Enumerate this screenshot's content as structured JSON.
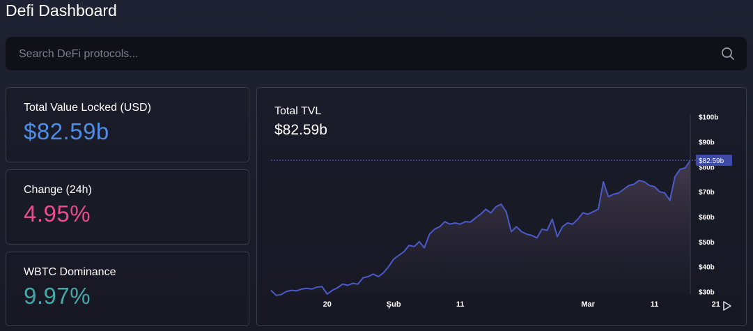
{
  "header": {
    "title": "Defi Dashboard"
  },
  "search": {
    "placeholder": "Search DeFi protocols...",
    "icon": "search-icon"
  },
  "stats": [
    {
      "label": "Total Value Locked (USD)",
      "value": "$82.59b",
      "color": "#4e8ee8"
    },
    {
      "label": "Change (24h)",
      "value": "4.95%",
      "color": "#ea4c8e"
    },
    {
      "label": "WBTC Dominance",
      "value": "9.97%",
      "color": "#46a9a8"
    }
  ],
  "chart": {
    "title": "Total TVL",
    "value": "$82.59b",
    "current_label": "$82.59b",
    "play_icon": "play-icon"
  },
  "chart_data": {
    "type": "area",
    "ylim": [
      29,
      101
    ],
    "yticks": [
      100,
      90,
      80,
      70,
      60,
      50,
      40,
      30
    ],
    "ytick_labels": [
      "$100b",
      "$90b",
      "$80b",
      "$70b",
      "$60b",
      "$50b",
      "$40b",
      "$30b"
    ],
    "xtick_labels": [
      "20",
      "Şub",
      "11",
      "Mar",
      "11",
      "21"
    ],
    "xtick_index": [
      11,
      24,
      37,
      62,
      75,
      87
    ],
    "current_value": 82.59,
    "line_color": "#4a5ac9",
    "series": [
      {
        "values": [
          30.5,
          28.5,
          28.8,
          30,
          30.5,
          30.3,
          31,
          31.3,
          31,
          31.8,
          32,
          29,
          30.5,
          31.5,
          33,
          32.5,
          33.3,
          33,
          35.5,
          36,
          37,
          36,
          37.5,
          40,
          43,
          44.5,
          46,
          48.5,
          48,
          50,
          47.5,
          53,
          55,
          56,
          58,
          57,
          57.5,
          57,
          58,
          57.8,
          59.5,
          61,
          63,
          61.5,
          64,
          65,
          62,
          54,
          56,
          54,
          53,
          52.5,
          51.5,
          55,
          54.5,
          59,
          52,
          56,
          57.5,
          57,
          59,
          61.5,
          61,
          62,
          63,
          74,
          68,
          69,
          69.5,
          71,
          72.5,
          73,
          74.5,
          74,
          72.5,
          72,
          70,
          69.5,
          66.5,
          76,
          79,
          79.5,
          82.59
        ]
      }
    ]
  }
}
